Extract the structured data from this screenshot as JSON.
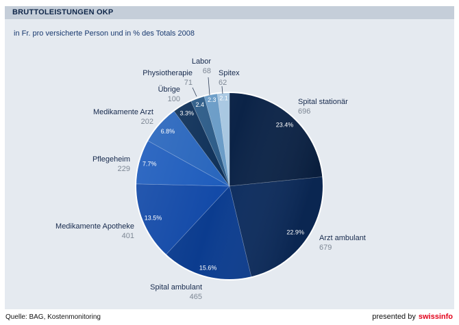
{
  "chart_data": {
    "type": "pie",
    "title": "BRUTTOLEISTUNGEN OKP",
    "subtitle": "in Fr. pro versicherte Person und in % des Totals 2008",
    "slices": [
      {
        "label": "Spital stationär",
        "value": 696,
        "percent_label": "23.4%",
        "color": "#0b2347"
      },
      {
        "label": "Arzt ambulant",
        "value": 679,
        "percent_label": "22.9%",
        "color": "#0c2c5e"
      },
      {
        "label": "Spital ambulant",
        "value": 465,
        "percent_label": "15.6%",
        "color": "#0b3c8f"
      },
      {
        "label": "Medikamente Apotheke",
        "value": 401,
        "percent_label": "13.5%",
        "color": "#134aa8"
      },
      {
        "label": "Pflegeheim",
        "value": 229,
        "percent_label": "7.7%",
        "color": "#1f5dbd"
      },
      {
        "label": "Medikamente Arzt",
        "value": 202,
        "percent_label": "6.8%",
        "color": "#2966bd"
      },
      {
        "label": "Übrige",
        "value": 100,
        "percent_label": "3.3%",
        "color": "#0f3159"
      },
      {
        "label": "Physiotherapie",
        "value": 71,
        "percent_label": "2.4",
        "color": "#2d5c88"
      },
      {
        "label": "Labor",
        "value": 68,
        "percent_label": "2.3",
        "color": "#6a9cc7"
      },
      {
        "label": "Spitex",
        "value": 62,
        "percent_label": "2.1",
        "color": "#a8c7e1"
      }
    ]
  },
  "footer": {
    "source": "Quelle: BAG, Kostenmonitoring",
    "presented_label": "presented by",
    "brand_part1": "swiss",
    "brand_part2": "info"
  },
  "colors": {
    "panel_background": "#e5eaf0",
    "title_band": "#c5ced9",
    "brand_red": "#e2001a"
  }
}
